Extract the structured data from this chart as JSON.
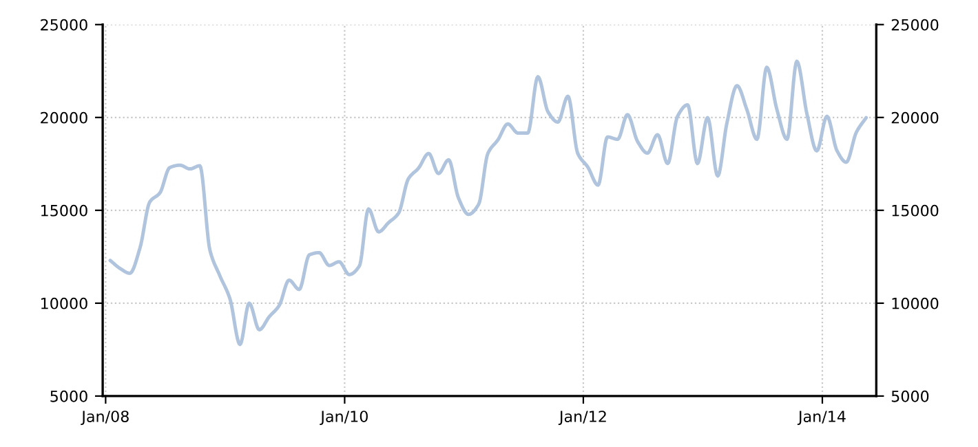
{
  "chart_data": {
    "type": "line",
    "x": [
      "2008-01-15",
      "2008-02-15",
      "2008-03-15",
      "2008-04-15",
      "2008-05-15",
      "2008-06-15",
      "2008-07-15",
      "2008-08-15",
      "2008-09-15",
      "2008-10-15",
      "2008-11-15",
      "2008-12-15",
      "2009-01-15",
      "2009-02-15",
      "2009-03-15",
      "2009-04-15",
      "2009-05-15",
      "2009-06-15",
      "2009-07-15",
      "2009-08-15",
      "2009-09-15",
      "2009-10-15",
      "2009-11-15",
      "2009-12-15",
      "2010-01-15",
      "2010-02-15",
      "2010-03-15",
      "2010-04-15",
      "2010-05-15",
      "2010-06-15",
      "2010-07-15",
      "2010-08-15",
      "2010-09-15",
      "2010-10-15",
      "2010-11-15",
      "2010-12-15",
      "2011-01-15",
      "2011-02-15",
      "2011-03-15",
      "2011-04-15",
      "2011-05-15",
      "2011-06-15",
      "2011-07-15",
      "2011-08-15",
      "2011-09-15",
      "2011-10-15",
      "2011-11-15",
      "2011-12-15",
      "2012-01-15",
      "2012-02-15",
      "2012-03-15",
      "2012-04-15",
      "2012-05-15",
      "2012-06-15",
      "2012-07-15",
      "2012-08-15",
      "2012-09-15",
      "2012-10-15",
      "2012-11-15",
      "2012-12-15",
      "2013-01-15",
      "2013-02-15",
      "2013-03-15",
      "2013-04-15",
      "2013-05-15",
      "2013-06-15",
      "2013-07-15",
      "2013-08-15",
      "2013-09-15",
      "2013-10-15",
      "2013-11-15",
      "2013-12-15",
      "2014-01-15",
      "2014-02-15",
      "2014-03-15",
      "2014-04-15",
      "2014-05-15"
    ],
    "series": [
      {
        "color": "#b0c4de",
        "values": [
          12300,
          11860,
          11610,
          12970,
          15450,
          15940,
          17300,
          17430,
          17230,
          17400,
          12850,
          11490,
          10250,
          7780,
          10000,
          8570,
          9260,
          9880,
          11240,
          10740,
          12600,
          12720,
          12030,
          12230,
          11540,
          12000,
          15070,
          13840,
          14330,
          14850,
          16700,
          17270,
          18060,
          16980,
          17720,
          15670,
          14780,
          15330,
          18060,
          18800,
          19650,
          19160,
          19160,
          22190,
          20300,
          19750,
          21140,
          18060,
          17320,
          16355,
          18950,
          18825,
          20150,
          18700,
          18080,
          19070,
          17520,
          20060,
          20680,
          17520,
          19990,
          16850,
          19690,
          21710,
          20430,
          18825,
          22700,
          20430,
          18825,
          23020,
          20180,
          18200,
          20060,
          18200,
          17590,
          19200,
          19990
        ]
      }
    ],
    "xlim": [
      "2007-12-23",
      "2014-06-15"
    ],
    "xticks": [
      {
        "value": "2008-01-01",
        "label": "Jan/08"
      },
      {
        "value": "2010-01-01",
        "label": "Jan/10"
      },
      {
        "value": "2012-01-01",
        "label": "Jan/12"
      },
      {
        "value": "2014-01-01",
        "label": "Jan/14"
      }
    ],
    "ylim": [
      5000,
      25000
    ],
    "yticks": [
      5000,
      10000,
      15000,
      20000,
      25000
    ],
    "y2lim": [
      5000,
      25000
    ],
    "y2ticks": [
      5000,
      10000,
      15000,
      20000,
      25000
    ],
    "grid": true,
    "legend": false,
    "marker": "none",
    "line_style": "solid"
  }
}
